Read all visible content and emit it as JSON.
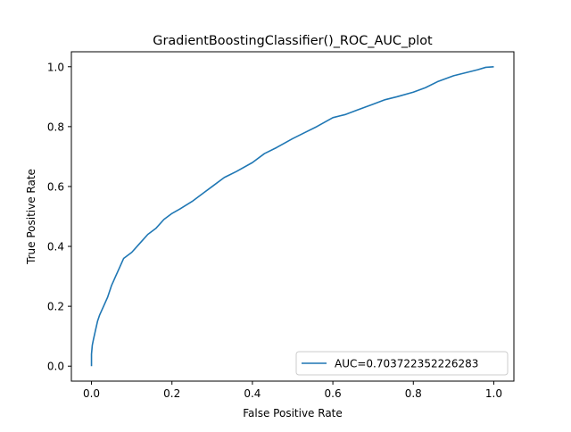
{
  "chart_data": {
    "type": "line",
    "title": "GradientBoostingClassifier()_ROC_AUC_plot",
    "xlabel": "False Positive Rate",
    "ylabel": "True Positive Rate",
    "xlim": [
      -0.05,
      1.05
    ],
    "ylim": [
      -0.05,
      1.05
    ],
    "xticks": [
      "0.0",
      "0.2",
      "0.4",
      "0.6",
      "0.8",
      "1.0"
    ],
    "yticks": [
      "0.0",
      "0.2",
      "0.4",
      "0.6",
      "0.8",
      "1.0"
    ],
    "grid": false,
    "legend_position": "lower-right",
    "series": [
      {
        "name": "AUC=0.703722352226283",
        "color": "#1f77b4",
        "x": [
          0.0,
          0.0,
          0.002,
          0.005,
          0.01,
          0.015,
          0.02,
          0.03,
          0.04,
          0.05,
          0.06,
          0.07,
          0.08,
          0.09,
          0.1,
          0.12,
          0.14,
          0.16,
          0.18,
          0.2,
          0.22,
          0.25,
          0.28,
          0.3,
          0.33,
          0.36,
          0.4,
          0.43,
          0.46,
          0.5,
          0.53,
          0.56,
          0.6,
          0.63,
          0.66,
          0.7,
          0.73,
          0.76,
          0.8,
          0.83,
          0.86,
          0.9,
          0.93,
          0.96,
          0.98,
          1.0
        ],
        "y": [
          0.0,
          0.04,
          0.07,
          0.09,
          0.12,
          0.15,
          0.17,
          0.2,
          0.23,
          0.27,
          0.3,
          0.33,
          0.36,
          0.37,
          0.38,
          0.41,
          0.44,
          0.46,
          0.49,
          0.51,
          0.525,
          0.55,
          0.58,
          0.6,
          0.63,
          0.65,
          0.68,
          0.71,
          0.73,
          0.76,
          0.78,
          0.8,
          0.83,
          0.84,
          0.855,
          0.875,
          0.89,
          0.9,
          0.915,
          0.93,
          0.95,
          0.97,
          0.98,
          0.99,
          0.998,
          1.0
        ]
      }
    ]
  }
}
